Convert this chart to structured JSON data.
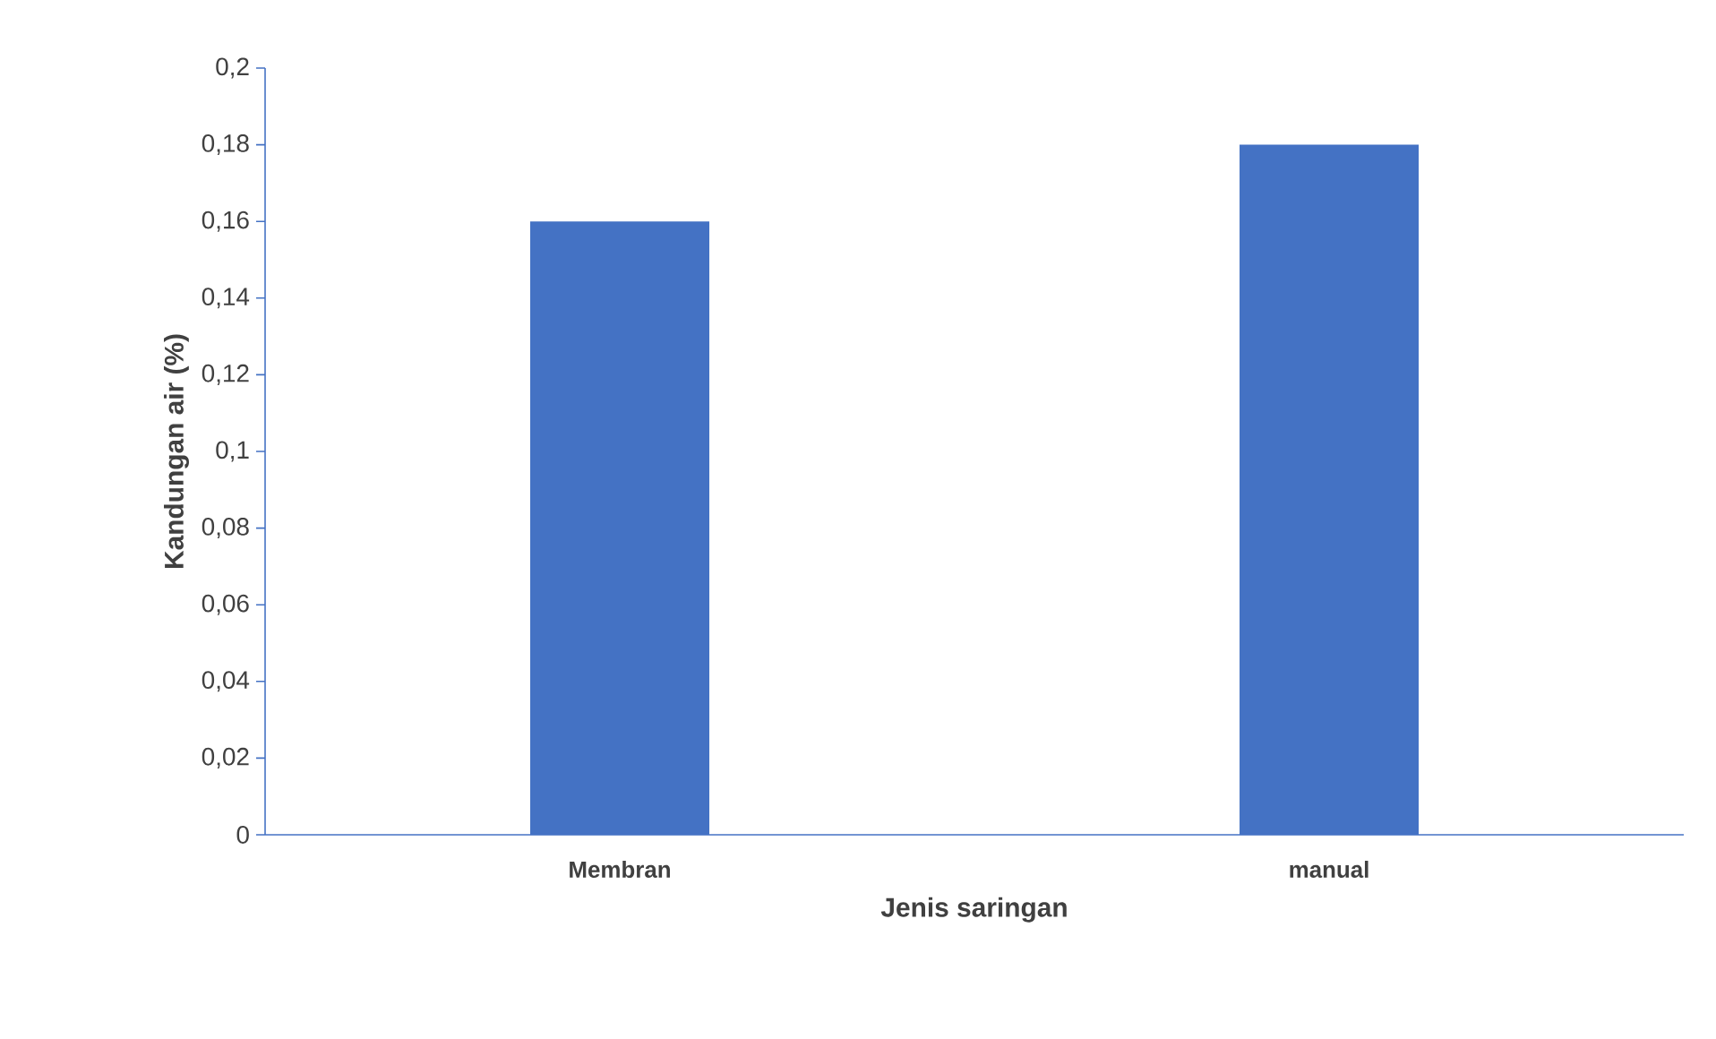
{
  "chart_data": {
    "type": "bar",
    "xlabel": "Jenis saringan",
    "ylabel": "Kandungan air (%)",
    "categories": [
      "Membran",
      "manual"
    ],
    "values": [
      0.16,
      0.18
    ],
    "color": "#4472c4",
    "ylim": [
      0,
      0.2
    ],
    "yticks": [
      0,
      {
        "value": 0.02,
        "label": "0,02"
      },
      {
        "value": 0.04,
        "label": "0,04"
      },
      {
        "value": 0.06,
        "label": "0,06"
      },
      {
        "value": 0.08,
        "label": "0,08"
      },
      {
        "value": 0.1,
        "label": "0,1"
      },
      {
        "value": 0.12,
        "label": "0,12"
      },
      {
        "value": 0.14,
        "label": "0,14"
      },
      {
        "value": 0.16,
        "label": "0,16"
      },
      {
        "value": 0.18,
        "label": "0,18"
      },
      {
        "value": 0.2,
        "label": "0,2"
      }
    ],
    "grid": false
  }
}
